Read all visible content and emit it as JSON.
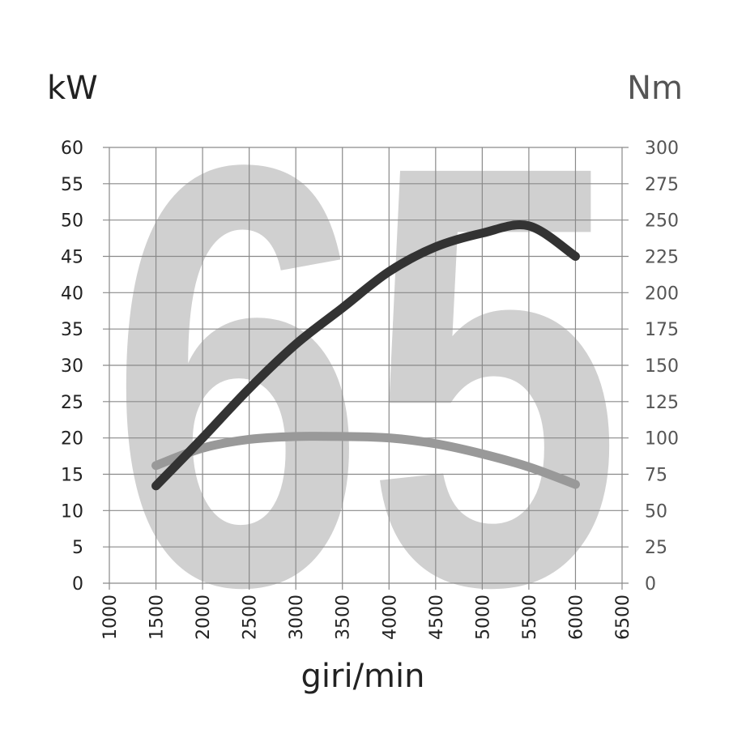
{
  "chart_data": {
    "type": "line",
    "watermark": "65",
    "y_label": "kW",
    "y2_label": "Nm",
    "x_label": "giri/min",
    "x": [
      1500,
      2000,
      2500,
      3000,
      3500,
      4000,
      4500,
      5000,
      5500,
      6000
    ],
    "series": [
      {
        "name": "kW",
        "color": "#333333",
        "axis": "y",
        "values": [
          13.4,
          20,
          26.8,
          32.9,
          37.9,
          42.9,
          46.3,
          48.2,
          49.2,
          45
        ]
      },
      {
        "name": "Nm",
        "color": "#999999",
        "axis": "y2",
        "values": [
          81,
          93,
          99,
          101,
          101,
          100,
          96,
          89,
          80,
          68
        ]
      }
    ],
    "xlim": [
      1000,
      6500
    ],
    "xticks": [
      1000,
      1500,
      2000,
      2500,
      3000,
      3500,
      4000,
      4500,
      5000,
      5500,
      6000,
      6500
    ],
    "ylim": [
      0,
      60
    ],
    "yticks": [
      0,
      5,
      10,
      15,
      20,
      25,
      30,
      35,
      40,
      45,
      50,
      55,
      60
    ],
    "y2lim": [
      0,
      300
    ],
    "y2ticks": [
      0,
      25,
      50,
      75,
      100,
      125,
      150,
      175,
      200,
      225,
      250,
      275,
      300
    ],
    "grid": true
  }
}
